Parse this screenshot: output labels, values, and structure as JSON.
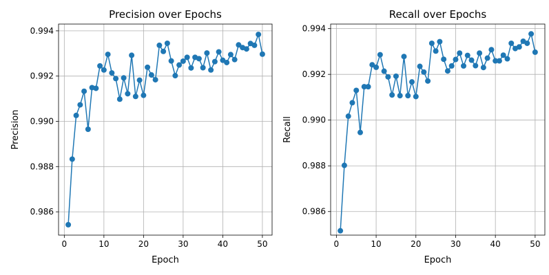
{
  "chart_data": [
    {
      "type": "line",
      "title": "Precision over Epochs",
      "xlabel": "Epoch",
      "ylabel": "Precision",
      "xlim": [
        -1.45,
        52.45
      ],
      "ylim": [
        0.98497,
        0.9943
      ],
      "xticks": [
        0,
        10,
        20,
        30,
        40,
        50
      ],
      "xtick_labels": [
        "0",
        "10",
        "20",
        "30",
        "40",
        "50"
      ],
      "yticks": [
        0.986,
        0.988,
        0.99,
        0.992,
        0.994
      ],
      "ytick_labels": [
        "0.986",
        "0.988",
        "0.990",
        "0.992",
        "0.994"
      ],
      "grid": true,
      "color": "#1f77b4",
      "x": [
        1,
        2,
        3,
        4,
        5,
        6,
        7,
        8,
        9,
        10,
        11,
        12,
        13,
        14,
        15,
        16,
        17,
        18,
        19,
        20,
        21,
        22,
        23,
        24,
        25,
        26,
        27,
        28,
        29,
        30,
        31,
        32,
        33,
        34,
        35,
        36,
        37,
        38,
        39,
        40,
        41,
        42,
        43,
        44,
        45,
        46,
        47,
        48,
        49,
        50
      ],
      "y": [
        0.98543,
        0.98833,
        0.99026,
        0.99073,
        0.99133,
        0.98965,
        0.99149,
        0.99146,
        0.99245,
        0.99227,
        0.99296,
        0.99214,
        0.99189,
        0.99098,
        0.99192,
        0.99122,
        0.99292,
        0.9911,
        0.99182,
        0.99115,
        0.99239,
        0.99205,
        0.99184,
        0.99336,
        0.99309,
        0.99345,
        0.99267,
        0.99202,
        0.99249,
        0.99266,
        0.99283,
        0.99236,
        0.99283,
        0.99277,
        0.99237,
        0.99302,
        0.99227,
        0.99264,
        0.99307,
        0.9927,
        0.9926,
        0.99295,
        0.99273,
        0.99338,
        0.99326,
        0.9932,
        0.99344,
        0.99336,
        0.99384,
        0.99297
      ]
    },
    {
      "type": "line",
      "title": "Recall over Epochs",
      "xlabel": "Epoch",
      "ylabel": "Recall",
      "xlim": [
        -1.45,
        52.45
      ],
      "ylim": [
        0.98497,
        0.9942
      ],
      "xticks": [
        0,
        10,
        20,
        30,
        40,
        50
      ],
      "xtick_labels": [
        "0",
        "10",
        "20",
        "30",
        "40",
        "50"
      ],
      "yticks": [
        0.986,
        0.988,
        0.99,
        0.992,
        0.994
      ],
      "ytick_labels": [
        "0.986",
        "0.988",
        "0.990",
        "0.992",
        "0.994"
      ],
      "grid": true,
      "color": "#1f77b4",
      "x": [
        1,
        2,
        3,
        4,
        5,
        6,
        7,
        8,
        9,
        10,
        11,
        12,
        13,
        14,
        15,
        16,
        17,
        18,
        19,
        20,
        21,
        22,
        23,
        24,
        25,
        26,
        27,
        28,
        29,
        30,
        31,
        32,
        33,
        34,
        35,
        36,
        37,
        38,
        39,
        40,
        41,
        42,
        43,
        44,
        45,
        46,
        47,
        48,
        49,
        50
      ],
      "y": [
        0.98516,
        0.98802,
        0.99017,
        0.99076,
        0.9913,
        0.98946,
        0.99146,
        0.99146,
        0.99242,
        0.99231,
        0.99286,
        0.99214,
        0.99189,
        0.9911,
        0.99192,
        0.99107,
        0.99278,
        0.99107,
        0.99167,
        0.99103,
        0.99235,
        0.9921,
        0.99171,
        0.99336,
        0.99302,
        0.99343,
        0.99266,
        0.99215,
        0.99237,
        0.99265,
        0.99293,
        0.99237,
        0.99283,
        0.99262,
        0.99238,
        0.99293,
        0.9923,
        0.99271,
        0.99308,
        0.99259,
        0.99259,
        0.99284,
        0.99268,
        0.99336,
        0.99313,
        0.9932,
        0.99345,
        0.99336,
        0.99377,
        0.99297
      ]
    }
  ]
}
